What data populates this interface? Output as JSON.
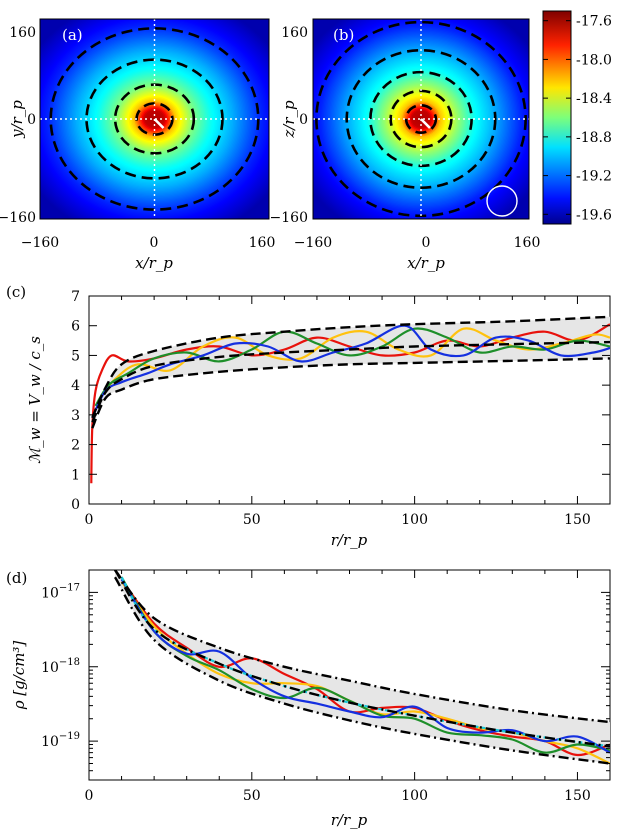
{
  "colors": {
    "ring_dash": "#000000",
    "crosshair": "#ffffff",
    "series_red": "#e8120c",
    "series_yellow": "#ffc20e",
    "series_green": "#1e8f2a",
    "series_blue": "#1530e0",
    "series_cyan": "#18c8d8",
    "band_fill": "#e6e6e6"
  },
  "chart_data": [
    {
      "type": "heatmap",
      "panel_label": "(a)",
      "xlabel": "x/r_p",
      "ylabel": "y/r_p",
      "xticks": [
        "−160",
        "0",
        "160"
      ],
      "yticks": [
        "160",
        "0",
        "−160"
      ],
      "xlim": [
        -160,
        160
      ],
      "ylim": [
        -160,
        160
      ],
      "colormap": "jet",
      "contour_radii": [
        25,
        55,
        95,
        145
      ],
      "radial_profile_log_rho": [
        [
          0,
          -17.6
        ],
        [
          15,
          -17.65
        ],
        [
          30,
          -18.2
        ],
        [
          55,
          -18.6
        ],
        [
          80,
          -18.85
        ],
        [
          110,
          -19.05
        ],
        [
          150,
          -19.35
        ],
        [
          200,
          -19.6
        ]
      ],
      "inset_circle": false
    },
    {
      "type": "heatmap",
      "panel_label": "(b)",
      "xlabel": "x/r_p",
      "ylabel": "z/r_p",
      "xticks": [
        "−160",
        "0",
        "160"
      ],
      "yticks": [
        "160",
        "0",
        "−160"
      ],
      "xlim": [
        -160,
        160
      ],
      "ylim": [
        -160,
        160
      ],
      "colormap": "jet",
      "contour_radii": [
        22,
        45,
        75,
        110,
        155
      ],
      "radial_profile_log_rho": [
        [
          0,
          -17.6
        ],
        [
          15,
          -17.65
        ],
        [
          30,
          -18.2
        ],
        [
          55,
          -18.55
        ],
        [
          80,
          -18.85
        ],
        [
          110,
          -19.05
        ],
        [
          150,
          -19.35
        ],
        [
          200,
          -19.6
        ]
      ],
      "inset_circle": true,
      "colorbar": {
        "min": -19.7,
        "max": -17.5,
        "tick_values": [
          -17.6,
          -18.0,
          -18.4,
          -18.8,
          -19.2,
          -19.6
        ],
        "tick_labels": [
          "-17.6",
          "-18.0",
          "-18.4",
          "-18.8",
          "-19.2",
          "-19.6"
        ]
      }
    },
    {
      "type": "line",
      "panel_label": "(c)",
      "xlabel": "r/r_p",
      "ylabel": "ℳ_w = V_w / c_s",
      "xlim": [
        0,
        160
      ],
      "ylim": [
        0,
        7
      ],
      "xticks": [
        0,
        50,
        100,
        150
      ],
      "yticks": [
        0,
        1,
        2,
        3,
        4,
        5,
        6,
        7
      ],
      "envelope": {
        "upper": [
          [
            1,
            2.9
          ],
          [
            5,
            3.9
          ],
          [
            10,
            4.7
          ],
          [
            20,
            5.15
          ],
          [
            40,
            5.6
          ],
          [
            60,
            5.8
          ],
          [
            80,
            5.95
          ],
          [
            100,
            6.05
          ],
          [
            130,
            6.15
          ],
          [
            160,
            6.3
          ]
        ],
        "mean": [
          [
            1,
            2.75
          ],
          [
            5,
            3.75
          ],
          [
            10,
            4.2
          ],
          [
            20,
            4.65
          ],
          [
            40,
            4.95
          ],
          [
            60,
            5.1
          ],
          [
            80,
            5.2
          ],
          [
            100,
            5.3
          ],
          [
            130,
            5.38
          ],
          [
            160,
            5.45
          ]
        ],
        "lower": [
          [
            1,
            2.55
          ],
          [
            5,
            3.55
          ],
          [
            10,
            3.85
          ],
          [
            20,
            4.2
          ],
          [
            40,
            4.45
          ],
          [
            60,
            4.6
          ],
          [
            80,
            4.7
          ],
          [
            100,
            4.75
          ],
          [
            130,
            4.82
          ],
          [
            160,
            4.9
          ]
        ]
      },
      "series": [
        {
          "color_key": "series_red",
          "points": [
            [
              0.7,
              0.7
            ],
            [
              1,
              2.6
            ],
            [
              2,
              3.8
            ],
            [
              4,
              4.5
            ],
            [
              7,
              5.0
            ],
            [
              12,
              4.8
            ],
            [
              20,
              4.9
            ],
            [
              30,
              5.2
            ],
            [
              40,
              5.3
            ],
            [
              50,
              5.0
            ],
            [
              60,
              5.2
            ],
            [
              70,
              5.6
            ],
            [
              80,
              5.3
            ],
            [
              90,
              5.0
            ],
            [
              100,
              5.1
            ],
            [
              110,
              5.5
            ],
            [
              120,
              5.3
            ],
            [
              130,
              5.6
            ],
            [
              140,
              5.8
            ],
            [
              150,
              5.5
            ],
            [
              160,
              6.05
            ]
          ]
        },
        {
          "color_key": "series_yellow",
          "points": [
            [
              3,
              3.5
            ],
            [
              8,
              4.2
            ],
            [
              15,
              4.7
            ],
            [
              25,
              4.5
            ],
            [
              35,
              5.3
            ],
            [
              45,
              5.6
            ],
            [
              55,
              5.0
            ],
            [
              65,
              4.9
            ],
            [
              75,
              5.6
            ],
            [
              85,
              5.8
            ],
            [
              95,
              5.2
            ],
            [
              105,
              5.0
            ],
            [
              115,
              5.9
            ],
            [
              125,
              5.5
            ],
            [
              135,
              5.2
            ],
            [
              145,
              5.4
            ],
            [
              155,
              5.7
            ],
            [
              160,
              5.6
            ]
          ]
        },
        {
          "color_key": "series_green",
          "points": [
            [
              2,
              3.3
            ],
            [
              6,
              4.0
            ],
            [
              12,
              4.4
            ],
            [
              20,
              4.9
            ],
            [
              30,
              5.1
            ],
            [
              40,
              4.8
            ],
            [
              50,
              5.2
            ],
            [
              60,
              5.8
            ],
            [
              70,
              5.4
            ],
            [
              80,
              5.0
            ],
            [
              90,
              5.3
            ],
            [
              100,
              5.9
            ],
            [
              110,
              5.6
            ],
            [
              120,
              5.1
            ],
            [
              130,
              5.3
            ],
            [
              140,
              5.2
            ],
            [
              150,
              5.5
            ],
            [
              160,
              5.3
            ]
          ]
        },
        {
          "color_key": "series_blue",
          "points": [
            [
              1,
              2.9
            ],
            [
              5,
              3.8
            ],
            [
              10,
              4.1
            ],
            [
              18,
              4.4
            ],
            [
              25,
              4.7
            ],
            [
              35,
              5.0
            ],
            [
              45,
              5.4
            ],
            [
              55,
              5.3
            ],
            [
              65,
              4.8
            ],
            [
              75,
              5.1
            ],
            [
              85,
              5.4
            ],
            [
              97,
              6.0
            ],
            [
              105,
              5.2
            ],
            [
              115,
              5.0
            ],
            [
              125,
              5.6
            ],
            [
              135,
              5.5
            ],
            [
              145,
              5.0
            ],
            [
              155,
              5.1
            ],
            [
              160,
              5.25
            ]
          ]
        }
      ]
    },
    {
      "type": "line",
      "panel_label": "(d)",
      "xlabel": "r/r_p",
      "ylabel": "ρ [g/cm³]",
      "yscale": "log",
      "xlim": [
        0,
        160
      ],
      "ylim": [
        3e-20,
        2e-17
      ],
      "xticks": [
        0,
        50,
        100,
        150
      ],
      "ytick_values": [
        1e-19,
        1e-18,
        1e-17
      ],
      "ytick_labels": [
        {
          "base": "10",
          "exp": "−19"
        },
        {
          "base": "10",
          "exp": "−18"
        },
        {
          "base": "10",
          "exp": "−17"
        }
      ],
      "envelope": {
        "upper": [
          [
            8,
            2e-17
          ],
          [
            20,
            4.5e-18
          ],
          [
            40,
            1.8e-18
          ],
          [
            60,
            1e-18
          ],
          [
            80,
            6.5e-19
          ],
          [
            100,
            4.3e-19
          ],
          [
            130,
            2.6e-19
          ],
          [
            160,
            1.8e-19
          ]
        ],
        "mean": [
          [
            8,
            2e-17
          ],
          [
            20,
            3.2e-18
          ],
          [
            40,
            1.1e-18
          ],
          [
            60,
            5.5e-19
          ],
          [
            80,
            3.3e-19
          ],
          [
            100,
            2.2e-19
          ],
          [
            130,
            1.3e-19
          ],
          [
            160,
            8.5e-20
          ]
        ],
        "lower": [
          [
            8,
            1.6e-17
          ],
          [
            20,
            2.3e-18
          ],
          [
            40,
            6.5e-19
          ],
          [
            60,
            3.2e-19
          ],
          [
            80,
            1.9e-19
          ],
          [
            100,
            1.25e-19
          ],
          [
            130,
            7.5e-20
          ],
          [
            160,
            5e-20
          ]
        ]
      },
      "series": [
        {
          "color_key": "series_red",
          "points": [
            [
              10,
              1.5e-17
            ],
            [
              20,
              3.8e-18
            ],
            [
              30,
              1.8e-18
            ],
            [
              40,
              1e-18
            ],
            [
              50,
              1.3e-18
            ],
            [
              60,
              8e-19
            ],
            [
              70,
              5e-19
            ],
            [
              80,
              2.5e-19
            ],
            [
              90,
              2.8e-19
            ],
            [
              100,
              2.8e-19
            ],
            [
              110,
              1.9e-19
            ],
            [
              120,
              1.4e-19
            ],
            [
              130,
              1.15e-19
            ],
            [
              140,
              1e-19
            ],
            [
              150,
              6.5e-20
            ],
            [
              160,
              9e-20
            ]
          ]
        },
        {
          "color_key": "series_yellow",
          "points": [
            [
              10,
              1.4e-17
            ],
            [
              20,
              3.5e-18
            ],
            [
              30,
              1.5e-18
            ],
            [
              40,
              8e-19
            ],
            [
              50,
              6e-19
            ],
            [
              60,
              6e-19
            ],
            [
              70,
              5.5e-19
            ],
            [
              80,
              3.5e-19
            ],
            [
              90,
              2.3e-19
            ],
            [
              100,
              2.5e-19
            ],
            [
              110,
              2e-19
            ],
            [
              120,
              1.5e-19
            ],
            [
              130,
              1.3e-19
            ],
            [
              140,
              1e-19
            ],
            [
              150,
              8e-20
            ],
            [
              160,
              5e-20
            ]
          ]
        },
        {
          "color_key": "series_green",
          "points": [
            [
              10,
              1.6e-17
            ],
            [
              20,
              3e-18
            ],
            [
              30,
              1.4e-18
            ],
            [
              40,
              9e-19
            ],
            [
              50,
              5e-19
            ],
            [
              60,
              3.8e-19
            ],
            [
              70,
              5.2e-19
            ],
            [
              80,
              3.5e-19
            ],
            [
              90,
              2.2e-19
            ],
            [
              100,
              2e-19
            ],
            [
              110,
              1.3e-19
            ],
            [
              120,
              1.2e-19
            ],
            [
              130,
              1.05e-19
            ],
            [
              140,
              7e-20
            ],
            [
              150,
              9e-20
            ],
            [
              160,
              7.5e-20
            ]
          ]
        },
        {
          "color_key": "series_blue",
          "points": [
            [
              10,
              1.5e-17
            ],
            [
              20,
              3e-18
            ],
            [
              30,
              1.5e-18
            ],
            [
              40,
              1.6e-18
            ],
            [
              50,
              7e-19
            ],
            [
              60,
              4e-19
            ],
            [
              70,
              3.2e-19
            ],
            [
              80,
              2.5e-19
            ],
            [
              90,
              2.1e-19
            ],
            [
              100,
              2.9e-19
            ],
            [
              110,
              1.5e-19
            ],
            [
              120,
              1.3e-19
            ],
            [
              130,
              1.4e-19
            ],
            [
              140,
              1e-19
            ],
            [
              150,
              1.15e-19
            ],
            [
              160,
              7e-20
            ]
          ]
        },
        {
          "color_key": "series_cyan",
          "points": [
            [
              10,
              1.6e-17
            ],
            [
              20,
              3.2e-18
            ],
            [
              40,
              1.1e-18
            ],
            [
              60,
              5.5e-19
            ],
            [
              80,
              3.3e-19
            ],
            [
              100,
              2.2e-19
            ],
            [
              130,
              1.3e-19
            ],
            [
              160,
              8.5e-20
            ]
          ]
        }
      ]
    }
  ]
}
